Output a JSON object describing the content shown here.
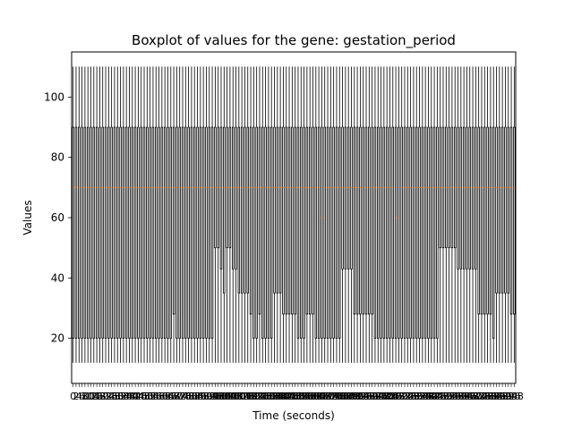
{
  "chart_data": {
    "type": "box",
    "title": "Boxplot of values for the gene: gestation_period",
    "xlabel": "Time (seconds)",
    "ylabel": "Values",
    "ylim": [
      5.0,
      115.0
    ],
    "yticks": [
      20,
      40,
      60,
      80,
      100
    ],
    "grid": false,
    "box_count": 150,
    "box_stats": {
      "whisker_low": 12,
      "q3": 90,
      "whisker_high": 110
    },
    "q1_values": [
      20,
      20,
      20,
      20,
      20,
      20,
      20,
      20,
      20,
      20,
      20,
      20,
      20,
      20,
      20,
      20,
      20,
      20,
      20,
      20,
      20,
      20,
      20,
      20,
      20,
      20,
      20,
      20,
      20,
      20,
      20,
      20,
      20,
      20,
      28,
      20,
      20,
      20,
      20,
      20,
      20,
      20,
      20,
      20,
      20,
      20,
      20,
      20,
      50,
      50,
      43,
      35,
      50,
      50,
      43,
      43,
      35,
      35,
      35,
      35,
      28,
      20,
      20,
      28,
      20,
      20,
      20,
      20,
      35,
      35,
      35,
      28,
      28,
      28,
      28,
      28,
      20,
      20,
      20,
      28,
      28,
      28,
      20,
      20,
      20,
      20,
      20,
      20,
      20,
      20,
      20,
      43,
      43,
      43,
      43,
      28,
      28,
      28,
      28,
      28,
      28,
      28,
      20,
      20,
      20,
      20,
      20,
      20,
      20,
      20,
      20,
      20,
      20,
      20,
      20,
      20,
      20,
      20,
      20,
      20,
      20,
      20,
      20,
      20,
      50,
      50,
      50,
      50,
      50,
      50,
      43,
      43,
      43,
      43,
      43,
      43,
      43,
      28,
      28,
      28,
      28,
      28,
      20,
      35,
      35,
      35,
      35,
      35,
      28,
      28,
      28,
      28
    ],
    "median_values": [
      70,
      70,
      70,
      70,
      70,
      70,
      70,
      70,
      70,
      70,
      70,
      70,
      70,
      70,
      70,
      70,
      70,
      70,
      70,
      70,
      70,
      70,
      70,
      70,
      70,
      70,
      70,
      70,
      70,
      70,
      70,
      70,
      70,
      70,
      70,
      70,
      70,
      70,
      70,
      70,
      70,
      70,
      70,
      70,
      70,
      70,
      70,
      70,
      70,
      70,
      70,
      70,
      70,
      70,
      70,
      70,
      70,
      70,
      70,
      70,
      70,
      70,
      70,
      70,
      70,
      70,
      70,
      70,
      70,
      70,
      70,
      70,
      70,
      70,
      70,
      70,
      70,
      70,
      70,
      70,
      70,
      70,
      70,
      70,
      60,
      70,
      70,
      70,
      70,
      70,
      70,
      70,
      70,
      70,
      70,
      70,
      70,
      70,
      70,
      70,
      70,
      70,
      70,
      70,
      70,
      70,
      70,
      70,
      70,
      60,
      60,
      70,
      70,
      70,
      70,
      70,
      70,
      70,
      70,
      70,
      70,
      70,
      70,
      70,
      70,
      70,
      70,
      70,
      70,
      70,
      70,
      70,
      70,
      70,
      70,
      70,
      70,
      70,
      70,
      70,
      70,
      70,
      70,
      70,
      70,
      70,
      70,
      70,
      70,
      70
    ],
    "xtick_labels": [
      "0",
      "2",
      "4",
      "6",
      "8",
      "10",
      "12",
      "14",
      "16",
      "18",
      "20",
      "22",
      "24",
      "26",
      "28",
      "30",
      "32",
      "34",
      "36",
      "38",
      "40",
      "42",
      "44",
      "46",
      "48",
      "50",
      "52",
      "54",
      "56",
      "58",
      "60",
      "62",
      "64",
      "66",
      "68",
      "70",
      "72",
      "74",
      "76",
      "78",
      "80",
      "82",
      "84",
      "86",
      "88",
      "90",
      "92",
      "94",
      "96",
      "98",
      "100",
      "102",
      "104",
      "106",
      "108",
      "110",
      "112",
      "114",
      "116",
      "118",
      "120",
      "122",
      "124",
      "126",
      "128",
      "130",
      "132",
      "134",
      "136",
      "138",
      "140",
      "142",
      "144",
      "146",
      "148",
      "150",
      "152",
      "154",
      "156",
      "158",
      "160",
      "162",
      "164",
      "166",
      "168",
      "170",
      "172",
      "174",
      "176",
      "178",
      "180",
      "182",
      "184",
      "186",
      "188",
      "190",
      "192",
      "194",
      "196",
      "198",
      "200",
      "202",
      "204",
      "206",
      "208",
      "210",
      "212",
      "214",
      "216",
      "218",
      "220",
      "222",
      "224",
      "226",
      "228",
      "230",
      "232",
      "234",
      "236",
      "238",
      "240",
      "242",
      "244",
      "246",
      "248",
      "250",
      "252",
      "254",
      "256",
      "258",
      "260",
      "262",
      "264",
      "266",
      "268",
      "270",
      "272",
      "274",
      "276",
      "278",
      "280",
      "282",
      "284",
      "286",
      "288",
      "290",
      "292",
      "294",
      "296",
      "298"
    ],
    "colors": {
      "box": "#000000",
      "median": "#ff7f0e",
      "axes": "#000000",
      "background": "#ffffff"
    }
  }
}
